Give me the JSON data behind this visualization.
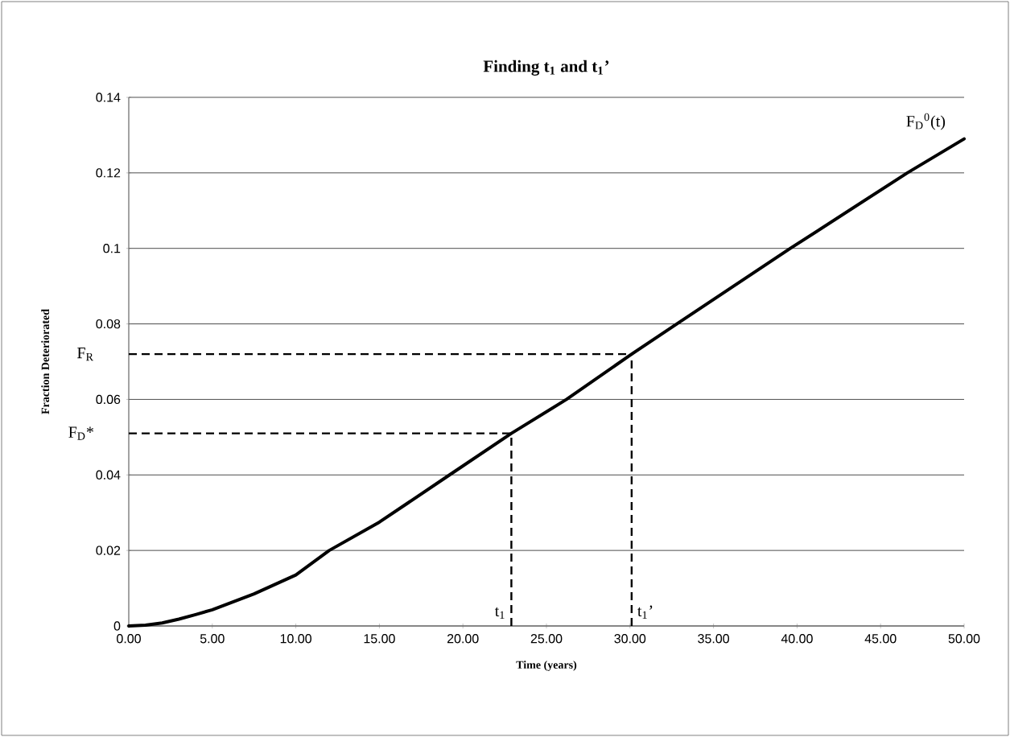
{
  "chart_data": {
    "type": "line",
    "title": "Finding t$_{1}$ and t$_{1}$’",
    "xlabel": "Time (years)",
    "ylabel": "Fraction Deteriorated",
    "x": [
      0,
      1,
      2,
      3,
      4,
      5,
      7.5,
      10,
      12,
      15,
      19.2,
      22.9,
      26.2,
      30.1,
      32.8,
      39.6,
      46.6,
      50
    ],
    "series": [
      {
        "name": "F$_{D}$$^{0}$(t)",
        "color": "#000000",
        "values": [
          0,
          0.0002,
          0.0008,
          0.0018,
          0.003,
          0.0043,
          0.0085,
          0.0135,
          0.02,
          0.0275,
          0.04,
          0.051,
          0.06,
          0.072,
          0.08,
          0.1,
          0.12,
          0.129
        ]
      }
    ],
    "xlim": [
      0,
      50
    ],
    "ylim": [
      0,
      0.14
    ],
    "xticks": [
      {
        "value": 0,
        "label": "0.00"
      },
      {
        "value": 5,
        "label": "5.00"
      },
      {
        "value": 10,
        "label": "10.00"
      },
      {
        "value": 15,
        "label": "15.00"
      },
      {
        "value": 20,
        "label": "20.00"
      },
      {
        "value": 25,
        "label": "25.00"
      },
      {
        "value": 30,
        "label": "30.00"
      },
      {
        "value": 35,
        "label": "35.00"
      },
      {
        "value": 40,
        "label": "40.00"
      },
      {
        "value": 45,
        "label": "45.00"
      },
      {
        "value": 50,
        "label": "50.00"
      }
    ],
    "yticks": [
      0,
      0.02,
      0.04,
      0.06,
      0.08,
      0.1,
      0.12,
      0.14
    ],
    "ref_lines": [
      {
        "axis": "y",
        "value": 0.072,
        "label": "F$_{R}$",
        "line_style": "dashed"
      },
      {
        "axis": "y",
        "value": 0.051,
        "label": "F$_{D}$*",
        "line_style": "dashed"
      },
      {
        "axis": "x",
        "value": 22.9,
        "label": "t$_{1}$",
        "line_style": "dashed"
      },
      {
        "axis": "x",
        "value": 30.1,
        "label": "t$_{1}$’",
        "line_style": "dashed"
      }
    ],
    "grid": "y",
    "marker": "none",
    "line_style": "solid"
  }
}
